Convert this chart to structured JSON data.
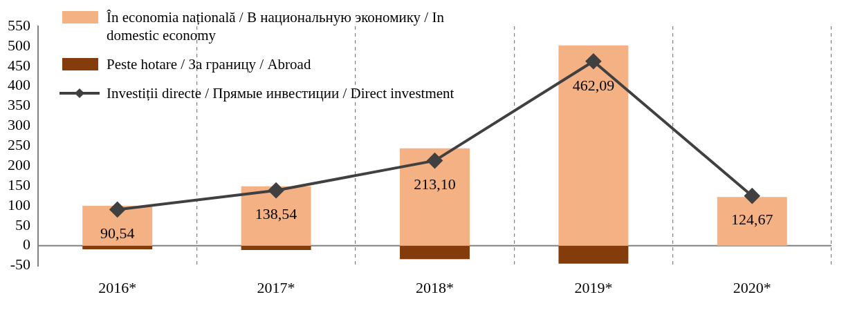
{
  "chart_data": {
    "type": "bar",
    "stacked": true,
    "categories": [
      "2016*",
      "2017*",
      "2018*",
      "2019*",
      "2020*"
    ],
    "series": [
      {
        "name": "În economia națională / В национальную экономику / In domestic economy",
        "color": "#f4b183",
        "values": [
          100,
          149,
          244,
          502,
          122
        ]
      },
      {
        "name": "Peste hotare / За границу / Abroad",
        "color": "#843c0c",
        "values": [
          -9,
          -11,
          -34,
          -45,
          0
        ]
      },
      {
        "name": "Investiții directe / Прямые инвестиции / Direct investment",
        "type": "line",
        "color": "#404040",
        "marker": "diamond",
        "values": [
          90.54,
          138.54,
          213.1,
          462.09,
          124.67
        ],
        "value_labels": [
          "90,54",
          "138,54",
          "213,10",
          "462,09",
          "124,67"
        ]
      }
    ],
    "ylim": [
      -50,
      550
    ],
    "yticks": [
      -50,
      0,
      50,
      100,
      150,
      200,
      250,
      300,
      350,
      400,
      450,
      500,
      550
    ],
    "grid": "x",
    "legend": "top left"
  }
}
